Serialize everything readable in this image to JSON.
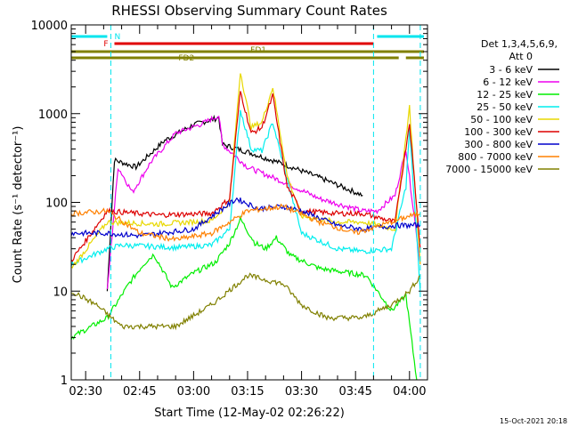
{
  "chart_data": {
    "type": "line",
    "title": "RHESSI Observing Summary Count Rates",
    "xlabel": "Start Time (12-May-02 02:26:22)",
    "ylabel": "Count Rate (s⁻¹ detector⁻¹)",
    "footer": "15-Oct-2021 20:18",
    "x_range_minutes": [
      "02:26",
      "04:05"
    ],
    "x_ticks": [
      "02:30",
      "02:45",
      "03:00",
      "03:15",
      "03:30",
      "03:45",
      "04:00"
    ],
    "y_ticks": [
      "1",
      "10",
      "100",
      "1000",
      "10000"
    ],
    "y_scale": "log",
    "ylim": [
      1,
      10000
    ],
    "legend_header": [
      "Det 1,3,4,5,6,9,",
      "Att 0"
    ],
    "legend_placement": "right",
    "flags": [
      {
        "label": "N",
        "color": "#00e5ee"
      },
      {
        "label": "F",
        "color": "#e00000"
      },
      {
        "label": "FD1",
        "color": "#808000"
      },
      {
        "label": "FD2",
        "color": "#808000"
      }
    ],
    "series": [
      {
        "name": "3 - 6 keV",
        "color": "#000000",
        "points": [
          [
            "02:36",
            10
          ],
          [
            "02:38",
            300
          ],
          [
            "02:44",
            250
          ],
          [
            "02:52",
            500
          ],
          [
            "03:00",
            750
          ],
          [
            "03:07",
            900
          ],
          [
            "03:08",
            450
          ],
          [
            "03:15",
            370
          ],
          [
            "03:25",
            270
          ],
          [
            "03:35",
            190
          ],
          [
            "03:47",
            120
          ]
        ]
      },
      {
        "name": "6 - 12 keV",
        "color": "#ee00ee",
        "points": [
          [
            "02:36",
            10
          ],
          [
            "02:39",
            250
          ],
          [
            "02:43",
            130
          ],
          [
            "02:48",
            280
          ],
          [
            "02:55",
            600
          ],
          [
            "03:02",
            760
          ],
          [
            "03:07",
            950
          ],
          [
            "03:08",
            450
          ],
          [
            "03:15",
            250
          ],
          [
            "03:25",
            170
          ],
          [
            "03:35",
            110
          ],
          [
            "03:47",
            80
          ],
          [
            "03:51",
            80
          ],
          [
            "03:56",
            120
          ],
          [
            "03:59",
            400
          ],
          [
            "04:03",
            20
          ]
        ]
      },
      {
        "name": "12 - 25 keV",
        "color": "#00ee00",
        "points": [
          [
            "02:26",
            3
          ],
          [
            "02:36",
            5
          ],
          [
            "02:42",
            12
          ],
          [
            "02:46",
            20
          ],
          [
            "02:49",
            26
          ],
          [
            "02:54",
            11
          ],
          [
            "03:00",
            16
          ],
          [
            "03:06",
            21
          ],
          [
            "03:10",
            35
          ],
          [
            "03:13",
            65
          ],
          [
            "03:17",
            35
          ],
          [
            "03:20",
            30
          ],
          [
            "03:23",
            40
          ],
          [
            "03:27",
            25
          ],
          [
            "03:35",
            18
          ],
          [
            "03:48",
            15
          ],
          [
            "03:55",
            6
          ],
          [
            "03:59",
            9
          ],
          [
            "04:02",
            1
          ]
        ]
      },
      {
        "name": "25 - 50 keV",
        "color": "#00eeee",
        "points": [
          [
            "02:26",
            20
          ],
          [
            "02:36",
            30
          ],
          [
            "02:40",
            33
          ],
          [
            "02:55",
            31
          ],
          [
            "03:05",
            33
          ],
          [
            "03:10",
            50
          ],
          [
            "03:13",
            1100
          ],
          [
            "03:16",
            400
          ],
          [
            "03:19",
            380
          ],
          [
            "03:22",
            800
          ],
          [
            "03:26",
            180
          ],
          [
            "03:30",
            45
          ],
          [
            "03:40",
            30
          ],
          [
            "03:47",
            28
          ],
          [
            "03:55",
            30
          ],
          [
            "03:59",
            150
          ],
          [
            "04:00",
            700
          ],
          [
            "04:03",
            10
          ]
        ]
      },
      {
        "name": "50 - 100 keV",
        "color": "#e8d800",
        "points": [
          [
            "02:26",
            18
          ],
          [
            "02:36",
            60
          ],
          [
            "02:50",
            57
          ],
          [
            "03:05",
            62
          ],
          [
            "03:10",
            100
          ],
          [
            "03:13",
            3000
          ],
          [
            "03:16",
            700
          ],
          [
            "03:19",
            800
          ],
          [
            "03:22",
            2000
          ],
          [
            "03:26",
            200
          ],
          [
            "03:30",
            70
          ],
          [
            "03:40",
            60
          ],
          [
            "03:47",
            60
          ],
          [
            "03:56",
            50
          ],
          [
            "04:00",
            1200
          ],
          [
            "04:03",
            20
          ]
        ]
      },
      {
        "name": "100 - 300 keV",
        "color": "#dd0000",
        "points": [
          [
            "02:26",
            22
          ],
          [
            "02:36",
            80
          ],
          [
            "02:50",
            72
          ],
          [
            "03:05",
            75
          ],
          [
            "03:10",
            110
          ],
          [
            "03:13",
            1800
          ],
          [
            "03:16",
            600
          ],
          [
            "03:19",
            700
          ],
          [
            "03:22",
            1600
          ],
          [
            "03:26",
            150
          ],
          [
            "03:30",
            80
          ],
          [
            "03:40",
            75
          ],
          [
            "03:47",
            75
          ],
          [
            "03:56",
            60
          ],
          [
            "04:00",
            800
          ],
          [
            "04:03",
            30
          ]
        ]
      },
      {
        "name": "300 - 800 keV",
        "color": "#0000cc",
        "points": [
          [
            "02:26",
            45
          ],
          [
            "02:36",
            45
          ],
          [
            "02:45",
            42
          ],
          [
            "03:00",
            50
          ],
          [
            "03:12",
            110
          ],
          [
            "03:18",
            85
          ],
          [
            "03:25",
            90
          ],
          [
            "03:30",
            80
          ],
          [
            "03:40",
            55
          ],
          [
            "03:47",
            50
          ],
          [
            "03:56",
            55
          ],
          [
            "04:03",
            55
          ]
        ]
      },
      {
        "name": "800 - 7000 keV",
        "color": "#ff8000",
        "points": [
          [
            "02:26",
            75
          ],
          [
            "02:36",
            80
          ],
          [
            "02:45",
            45
          ],
          [
            "02:55",
            38
          ],
          [
            "03:05",
            45
          ],
          [
            "03:15",
            80
          ],
          [
            "03:25",
            90
          ],
          [
            "03:35",
            60
          ],
          [
            "03:45",
            45
          ],
          [
            "03:52",
            55
          ],
          [
            "04:00",
            70
          ],
          [
            "04:03",
            75
          ]
        ]
      },
      {
        "name": "7000 - 15000 keV",
        "color": "#808000",
        "points": [
          [
            "02:26",
            10
          ],
          [
            "02:33",
            7
          ],
          [
            "02:40",
            4
          ],
          [
            "02:45",
            4
          ],
          [
            "02:55",
            4
          ],
          [
            "03:05",
            7
          ],
          [
            "03:15",
            15
          ],
          [
            "03:25",
            12
          ],
          [
            "03:30",
            7
          ],
          [
            "03:37",
            5
          ],
          [
            "03:47",
            5
          ],
          [
            "03:55",
            7
          ],
          [
            "04:00",
            10
          ],
          [
            "04:03",
            15
          ]
        ]
      }
    ]
  }
}
